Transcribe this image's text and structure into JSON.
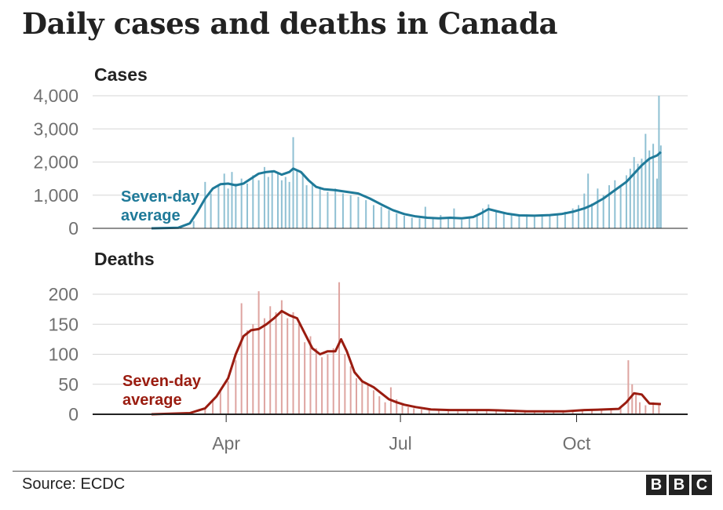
{
  "title": "Daily cases and deaths in Canada",
  "source": "Source: ECDC",
  "logo": [
    "B",
    "B",
    "C"
  ],
  "colors": {
    "cases_line": "#1f7a99",
    "cases_bar": "#8fc0d3",
    "deaths_line": "#9a1c10",
    "deaths_bar": "#dea4a0",
    "grid": "#d6d6d6",
    "axis": "#222222"
  },
  "chart_data": [
    {
      "type": "bar",
      "title": "Cases",
      "annotation": [
        "Seven-day",
        "average"
      ],
      "x_ticks": [
        "Apr",
        "Jul",
        "Oct"
      ],
      "y_ticks": [
        0,
        1000,
        2000,
        3000,
        4000
      ],
      "y_tick_labels": [
        "0",
        "1,000",
        "2,000",
        "3,000",
        "4,000"
      ],
      "ylim": [
        0,
        4000
      ],
      "bars": [
        {
          "day": 22,
          "value": 220
        },
        {
          "day": 28,
          "value": 1400
        },
        {
          "day": 31,
          "value": 1050
        },
        {
          "day": 35,
          "value": 1300
        },
        {
          "day": 38,
          "value": 1650
        },
        {
          "day": 40,
          "value": 1200
        },
        {
          "day": 42,
          "value": 1700
        },
        {
          "day": 44,
          "value": 1350
        },
        {
          "day": 47,
          "value": 1500
        },
        {
          "day": 50,
          "value": 1350
        },
        {
          "day": 53,
          "value": 1600
        },
        {
          "day": 56,
          "value": 1450
        },
        {
          "day": 59,
          "value": 1850
        },
        {
          "day": 61,
          "value": 1550
        },
        {
          "day": 63,
          "value": 1750
        },
        {
          "day": 66,
          "value": 1650
        },
        {
          "day": 68,
          "value": 1450
        },
        {
          "day": 70,
          "value": 1550
        },
        {
          "day": 72,
          "value": 1400
        },
        {
          "day": 74,
          "value": 2750
        },
        {
          "day": 76,
          "value": 1750
        },
        {
          "day": 79,
          "value": 1650
        },
        {
          "day": 81,
          "value": 1300
        },
        {
          "day": 84,
          "value": 1350
        },
        {
          "day": 88,
          "value": 1250
        },
        {
          "day": 92,
          "value": 1100
        },
        {
          "day": 96,
          "value": 1200
        },
        {
          "day": 100,
          "value": 1050
        },
        {
          "day": 104,
          "value": 1000
        },
        {
          "day": 108,
          "value": 950
        },
        {
          "day": 112,
          "value": 850
        },
        {
          "day": 116,
          "value": 700
        },
        {
          "day": 120,
          "value": 650
        },
        {
          "day": 124,
          "value": 550
        },
        {
          "day": 128,
          "value": 450
        },
        {
          "day": 132,
          "value": 380
        },
        {
          "day": 136,
          "value": 320
        },
        {
          "day": 140,
          "value": 300
        },
        {
          "day": 143,
          "value": 650
        },
        {
          "day": 147,
          "value": 280
        },
        {
          "day": 151,
          "value": 400
        },
        {
          "day": 155,
          "value": 300
        },
        {
          "day": 158,
          "value": 600
        },
        {
          "day": 162,
          "value": 260
        },
        {
          "day": 166,
          "value": 350
        },
        {
          "day": 170,
          "value": 400
        },
        {
          "day": 173,
          "value": 600
        },
        {
          "day": 176,
          "value": 720
        },
        {
          "day": 180,
          "value": 500
        },
        {
          "day": 184,
          "value": 450
        },
        {
          "day": 188,
          "value": 420
        },
        {
          "day": 192,
          "value": 380
        },
        {
          "day": 196,
          "value": 420
        },
        {
          "day": 200,
          "value": 350
        },
        {
          "day": 204,
          "value": 400
        },
        {
          "day": 208,
          "value": 420
        },
        {
          "day": 212,
          "value": 450
        },
        {
          "day": 216,
          "value": 500
        },
        {
          "day": 220,
          "value": 600
        },
        {
          "day": 223,
          "value": 700
        },
        {
          "day": 226,
          "value": 1050
        },
        {
          "day": 228,
          "value": 1650
        },
        {
          "day": 230,
          "value": 750
        },
        {
          "day": 233,
          "value": 1200
        },
        {
          "day": 236,
          "value": 1000
        },
        {
          "day": 239,
          "value": 1300
        },
        {
          "day": 242,
          "value": 1450
        },
        {
          "day": 245,
          "value": 1250
        },
        {
          "day": 248,
          "value": 1600
        },
        {
          "day": 250,
          "value": 1800
        },
        {
          "day": 252,
          "value": 2150
        },
        {
          "day": 254,
          "value": 1950
        },
        {
          "day": 256,
          "value": 2100
        },
        {
          "day": 258,
          "value": 2850
        },
        {
          "day": 260,
          "value": 2350
        },
        {
          "day": 262,
          "value": 2550
        },
        {
          "day": 264,
          "value": 1500
        },
        {
          "day": 265,
          "value": 4000
        },
        {
          "day": 266,
          "value": 2500
        }
      ],
      "seven_day_average": [
        {
          "day": 0,
          "value": 0
        },
        {
          "day": 14,
          "value": 20
        },
        {
          "day": 20,
          "value": 150
        },
        {
          "day": 24,
          "value": 500
        },
        {
          "day": 28,
          "value": 900
        },
        {
          "day": 32,
          "value": 1200
        },
        {
          "day": 36,
          "value": 1330
        },
        {
          "day": 40,
          "value": 1350
        },
        {
          "day": 44,
          "value": 1300
        },
        {
          "day": 48,
          "value": 1350
        },
        {
          "day": 52,
          "value": 1500
        },
        {
          "day": 56,
          "value": 1650
        },
        {
          "day": 60,
          "value": 1700
        },
        {
          "day": 64,
          "value": 1720
        },
        {
          "day": 68,
          "value": 1620
        },
        {
          "day": 72,
          "value": 1700
        },
        {
          "day": 74,
          "value": 1800
        },
        {
          "day": 78,
          "value": 1700
        },
        {
          "day": 82,
          "value": 1450
        },
        {
          "day": 86,
          "value": 1250
        },
        {
          "day": 90,
          "value": 1180
        },
        {
          "day": 96,
          "value": 1150
        },
        {
          "day": 102,
          "value": 1100
        },
        {
          "day": 108,
          "value": 1050
        },
        {
          "day": 114,
          "value": 900
        },
        {
          "day": 120,
          "value": 720
        },
        {
          "day": 126,
          "value": 550
        },
        {
          "day": 132,
          "value": 430
        },
        {
          "day": 138,
          "value": 360
        },
        {
          "day": 144,
          "value": 320
        },
        {
          "day": 150,
          "value": 300
        },
        {
          "day": 156,
          "value": 320
        },
        {
          "day": 162,
          "value": 300
        },
        {
          "day": 168,
          "value": 340
        },
        {
          "day": 172,
          "value": 450
        },
        {
          "day": 176,
          "value": 580
        },
        {
          "day": 180,
          "value": 520
        },
        {
          "day": 186,
          "value": 440
        },
        {
          "day": 192,
          "value": 390
        },
        {
          "day": 200,
          "value": 380
        },
        {
          "day": 208,
          "value": 400
        },
        {
          "day": 214,
          "value": 430
        },
        {
          "day": 220,
          "value": 500
        },
        {
          "day": 226,
          "value": 600
        },
        {
          "day": 230,
          "value": 700
        },
        {
          "day": 236,
          "value": 900
        },
        {
          "day": 242,
          "value": 1150
        },
        {
          "day": 248,
          "value": 1400
        },
        {
          "day": 252,
          "value": 1650
        },
        {
          "day": 256,
          "value": 1900
        },
        {
          "day": 260,
          "value": 2100
        },
        {
          "day": 264,
          "value": 2200
        },
        {
          "day": 266,
          "value": 2300
        }
      ]
    },
    {
      "type": "bar",
      "title": "Deaths",
      "annotation": [
        "Seven-day",
        "average"
      ],
      "x_ticks": [
        "Apr",
        "Jul",
        "Oct"
      ],
      "y_ticks": [
        0,
        50,
        100,
        150,
        200
      ],
      "y_tick_labels": [
        "0",
        "50",
        "100",
        "150",
        "200"
      ],
      "ylim": [
        0,
        200
      ],
      "bars": [
        {
          "day": 28,
          "value": 10
        },
        {
          "day": 32,
          "value": 25
        },
        {
          "day": 36,
          "value": 40
        },
        {
          "day": 40,
          "value": 55
        },
        {
          "day": 44,
          "value": 90
        },
        {
          "day": 47,
          "value": 185
        },
        {
          "day": 50,
          "value": 140
        },
        {
          "day": 53,
          "value": 150
        },
        {
          "day": 56,
          "value": 205
        },
        {
          "day": 59,
          "value": 160
        },
        {
          "day": 62,
          "value": 180
        },
        {
          "day": 65,
          "value": 170
        },
        {
          "day": 68,
          "value": 190
        },
        {
          "day": 71,
          "value": 160
        },
        {
          "day": 74,
          "value": 170
        },
        {
          "day": 77,
          "value": 150
        },
        {
          "day": 80,
          "value": 120
        },
        {
          "day": 83,
          "value": 130
        },
        {
          "day": 86,
          "value": 110
        },
        {
          "day": 89,
          "value": 95
        },
        {
          "day": 92,
          "value": 100
        },
        {
          "day": 95,
          "value": 110
        },
        {
          "day": 98,
          "value": 220
        },
        {
          "day": 101,
          "value": 100
        },
        {
          "day": 104,
          "value": 80
        },
        {
          "day": 107,
          "value": 60
        },
        {
          "day": 110,
          "value": 55
        },
        {
          "day": 113,
          "value": 50
        },
        {
          "day": 116,
          "value": 40
        },
        {
          "day": 119,
          "value": 30
        },
        {
          "day": 122,
          "value": 20
        },
        {
          "day": 125,
          "value": 45
        },
        {
          "day": 128,
          "value": 25
        },
        {
          "day": 131,
          "value": 15
        },
        {
          "day": 134,
          "value": 12
        },
        {
          "day": 137,
          "value": 10
        },
        {
          "day": 141,
          "value": 8
        },
        {
          "day": 145,
          "value": 7
        },
        {
          "day": 150,
          "value": 8
        },
        {
          "day": 155,
          "value": 6
        },
        {
          "day": 160,
          "value": 5
        },
        {
          "day": 165,
          "value": 7
        },
        {
          "day": 170,
          "value": 6
        },
        {
          "day": 175,
          "value": 5
        },
        {
          "day": 180,
          "value": 6
        },
        {
          "day": 185,
          "value": 5
        },
        {
          "day": 190,
          "value": 6
        },
        {
          "day": 195,
          "value": 4
        },
        {
          "day": 200,
          "value": 5
        },
        {
          "day": 205,
          "value": 4
        },
        {
          "day": 210,
          "value": 6
        },
        {
          "day": 215,
          "value": 5
        },
        {
          "day": 220,
          "value": 6
        },
        {
          "day": 225,
          "value": 7
        },
        {
          "day": 230,
          "value": 8
        },
        {
          "day": 235,
          "value": 9
        },
        {
          "day": 240,
          "value": 10
        },
        {
          "day": 245,
          "value": 12
        },
        {
          "day": 249,
          "value": 90
        },
        {
          "day": 251,
          "value": 50
        },
        {
          "day": 253,
          "value": 35
        },
        {
          "day": 255,
          "value": 20
        },
        {
          "day": 258,
          "value": 15
        },
        {
          "day": 262,
          "value": 20
        },
        {
          "day": 265,
          "value": 18
        }
      ],
      "seven_day_average": [
        {
          "day": 0,
          "value": 0
        },
        {
          "day": 20,
          "value": 2
        },
        {
          "day": 28,
          "value": 10
        },
        {
          "day": 34,
          "value": 30
        },
        {
          "day": 40,
          "value": 60
        },
        {
          "day": 44,
          "value": 100
        },
        {
          "day": 48,
          "value": 130
        },
        {
          "day": 52,
          "value": 140
        },
        {
          "day": 56,
          "value": 142
        },
        {
          "day": 60,
          "value": 150
        },
        {
          "day": 64,
          "value": 160
        },
        {
          "day": 68,
          "value": 172
        },
        {
          "day": 72,
          "value": 165
        },
        {
          "day": 76,
          "value": 160
        },
        {
          "day": 80,
          "value": 135
        },
        {
          "day": 84,
          "value": 110
        },
        {
          "day": 88,
          "value": 100
        },
        {
          "day": 92,
          "value": 105
        },
        {
          "day": 96,
          "value": 105
        },
        {
          "day": 99,
          "value": 125
        },
        {
          "day": 102,
          "value": 105
        },
        {
          "day": 106,
          "value": 70
        },
        {
          "day": 110,
          "value": 55
        },
        {
          "day": 116,
          "value": 45
        },
        {
          "day": 120,
          "value": 35
        },
        {
          "day": 124,
          "value": 25
        },
        {
          "day": 128,
          "value": 20
        },
        {
          "day": 132,
          "value": 16
        },
        {
          "day": 138,
          "value": 12
        },
        {
          "day": 146,
          "value": 8
        },
        {
          "day": 156,
          "value": 7
        },
        {
          "day": 166,
          "value": 7
        },
        {
          "day": 176,
          "value": 7
        },
        {
          "day": 186,
          "value": 6
        },
        {
          "day": 196,
          "value": 5
        },
        {
          "day": 206,
          "value": 5
        },
        {
          "day": 216,
          "value": 5
        },
        {
          "day": 226,
          "value": 7
        },
        {
          "day": 236,
          "value": 8
        },
        {
          "day": 244,
          "value": 9
        },
        {
          "day": 248,
          "value": 20
        },
        {
          "day": 252,
          "value": 35
        },
        {
          "day": 256,
          "value": 33
        },
        {
          "day": 260,
          "value": 18
        },
        {
          "day": 266,
          "value": 17
        }
      ]
    }
  ]
}
